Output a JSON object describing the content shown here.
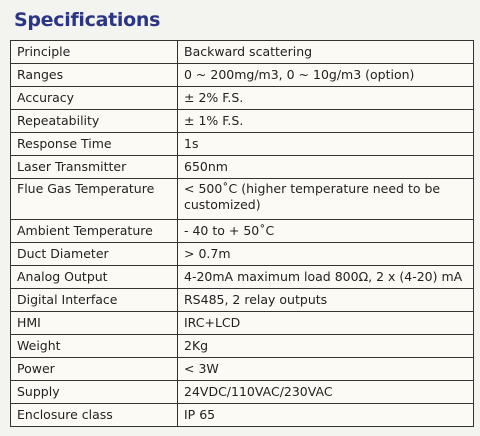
{
  "title": "Specifications",
  "table": {
    "rows": [
      [
        "Principle",
        "Backward scattering"
      ],
      [
        "Ranges",
        "0 ~ 200mg/m3, 0 ~ 10g/m3 (option)"
      ],
      [
        "Accuracy",
        "± 2% F.S."
      ],
      [
        "Repeatability",
        "± 1% F.S."
      ],
      [
        "Response Time",
        "1s"
      ],
      [
        "Laser Transmitter",
        "650nm"
      ],
      [
        "Flue Gas Temperature",
        "< 500˚C (higher temperature need to be customized)"
      ],
      [
        "Ambient Temperature",
        "- 40 to + 50˚C"
      ],
      [
        "Duct Diameter",
        "> 0.7m"
      ],
      [
        "Analog Output",
        "4-20mA maximum load 800Ω, 2 x (4-20) mA"
      ],
      [
        "Digital Interface",
        "RS485, 2 relay outputs"
      ],
      [
        "HMI",
        "IRC+LCD"
      ],
      [
        "Weight",
        "2Kg"
      ],
      [
        "Power",
        "< 3W"
      ],
      [
        "Supply",
        "24VDC/110VAC/230VAC"
      ],
      [
        "Enclosure class",
        "IP 65"
      ]
    ]
  }
}
